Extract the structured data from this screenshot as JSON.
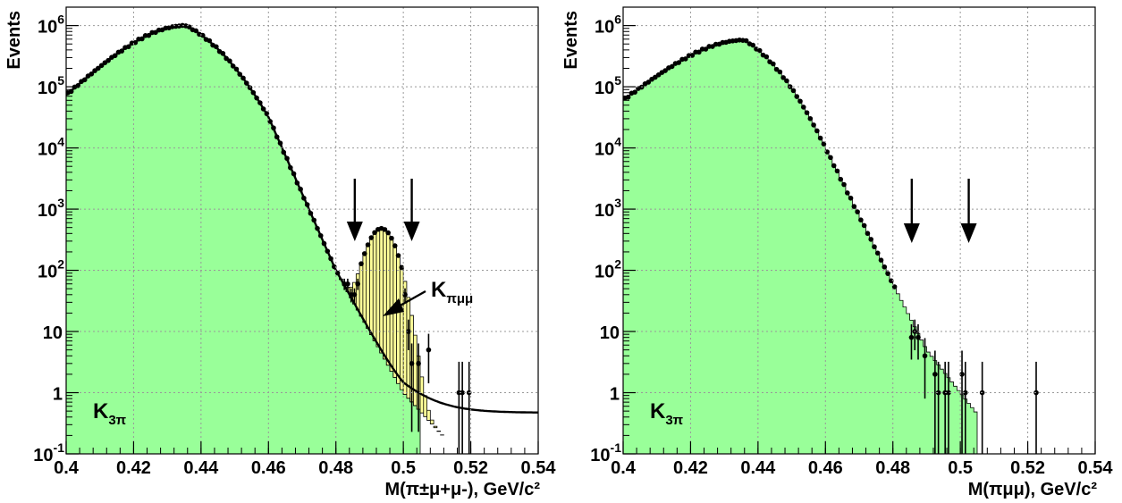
{
  "chart_data": [
    {
      "type": "histogram",
      "xlabel": "M(π±μ+μ-), GeV/c²",
      "ylabel": "Events",
      "xlim": [
        0.4,
        0.54
      ],
      "ylim": [
        0.1,
        2000000
      ],
      "log_y": true,
      "grid": true,
      "x_ticks": [
        "0.4",
        "0.42",
        "0.44",
        "0.46",
        "0.48",
        "0.5",
        "0.52",
        "0.54"
      ],
      "y_ticks": [
        {
          "base": "10",
          "exp": "-1"
        },
        {
          "base": "1",
          "exp": ""
        },
        {
          "base": "10",
          "exp": ""
        },
        {
          "base": "10",
          "exp": "2"
        },
        {
          "base": "10",
          "exp": "3"
        },
        {
          "base": "10",
          "exp": "4"
        },
        {
          "base": "10",
          "exp": "5"
        },
        {
          "base": "10",
          "exp": "6"
        }
      ],
      "background_label": {
        "main": "K",
        "sub": "3π"
      },
      "signal_label": {
        "main": "K",
        "sub": "πμμ"
      },
      "signal_window": [
        0.4856,
        0.5025
      ],
      "background_color": "#99ff99",
      "signal_color": "#ffff99",
      "background_shape": {
        "peak": 0.4355,
        "peak_value": 1000000,
        "value_at_0.4": 18000,
        "low_side_width": 0.0095,
        "high_side_curvature": 0.021,
        "value_at_0.46": 32000,
        "value_at_0.48": 100,
        "value_at_0.49": 10,
        "value_at_0.50": 1,
        "value_at_0.505": 0.5
      },
      "signal_peak": {
        "mean": 0.4935,
        "sigma": 0.0035,
        "peak_value": 480
      },
      "fit_plateau": 0.47,
      "points_tail": [
        {
          "x": 0.4825,
          "y": 60
        },
        {
          "x": 0.4835,
          "y": 60
        },
        {
          "x": 0.4845,
          "y": 40
        },
        {
          "x": 0.4855,
          "y": 40
        },
        {
          "x": 0.4865,
          "y": 60
        },
        {
          "x": 0.5005,
          "y": 40
        },
        {
          "x": 0.5015,
          "y": 10
        },
        {
          "x": 0.5025,
          "y": 3
        },
        {
          "x": 0.5045,
          "y": 3
        },
        {
          "x": 0.5075,
          "y": 5
        },
        {
          "x": 0.5165,
          "y": 1
        },
        {
          "x": 0.5175,
          "y": 1
        },
        {
          "x": 0.5195,
          "y": 1
        }
      ]
    },
    {
      "type": "histogram",
      "xlabel": "M(πμμ), GeV/c²",
      "ylabel": "Events",
      "xlim": [
        0.4,
        0.54
      ],
      "ylim": [
        0.1,
        2000000
      ],
      "log_y": true,
      "grid": true,
      "x_ticks": [
        "0.4",
        "0.42",
        "0.44",
        "0.46",
        "0.48",
        "0.5",
        "0.52",
        "0.54"
      ],
      "y_ticks": [
        {
          "base": "10",
          "exp": "-1"
        },
        {
          "base": "1",
          "exp": ""
        },
        {
          "base": "10",
          "exp": ""
        },
        {
          "base": "10",
          "exp": "2"
        },
        {
          "base": "10",
          "exp": "3"
        },
        {
          "base": "10",
          "exp": "4"
        },
        {
          "base": "10",
          "exp": "5"
        },
        {
          "base": "10",
          "exp": "6"
        }
      ],
      "background_label": {
        "main": "K",
        "sub": "3π"
      },
      "signal_window": [
        0.4856,
        0.5025
      ],
      "background_color": "#99ff99",
      "background_shape": {
        "peak": 0.436,
        "peak_value": 580000,
        "value_at_0.4": 18000,
        "low_side_width": 0.0105,
        "high_side_curvature": 0.024,
        "value_at_0.46": 10000,
        "value_at_0.48": 60,
        "value_at_0.49": 5,
        "value_at_0.50": 1
      },
      "points_tail": [
        {
          "x": 0.4855,
          "y": 8
        },
        {
          "x": 0.4865,
          "y": 10
        },
        {
          "x": 0.4875,
          "y": 8
        },
        {
          "x": 0.4895,
          "y": 4
        },
        {
          "x": 0.4925,
          "y": 2
        },
        {
          "x": 0.4935,
          "y": 1
        },
        {
          "x": 0.4955,
          "y": 1
        },
        {
          "x": 0.4965,
          "y": 1
        },
        {
          "x": 0.5005,
          "y": 2
        },
        {
          "x": 0.5015,
          "y": 1
        },
        {
          "x": 0.5065,
          "y": 1
        },
        {
          "x": 0.5225,
          "y": 1
        }
      ]
    }
  ]
}
